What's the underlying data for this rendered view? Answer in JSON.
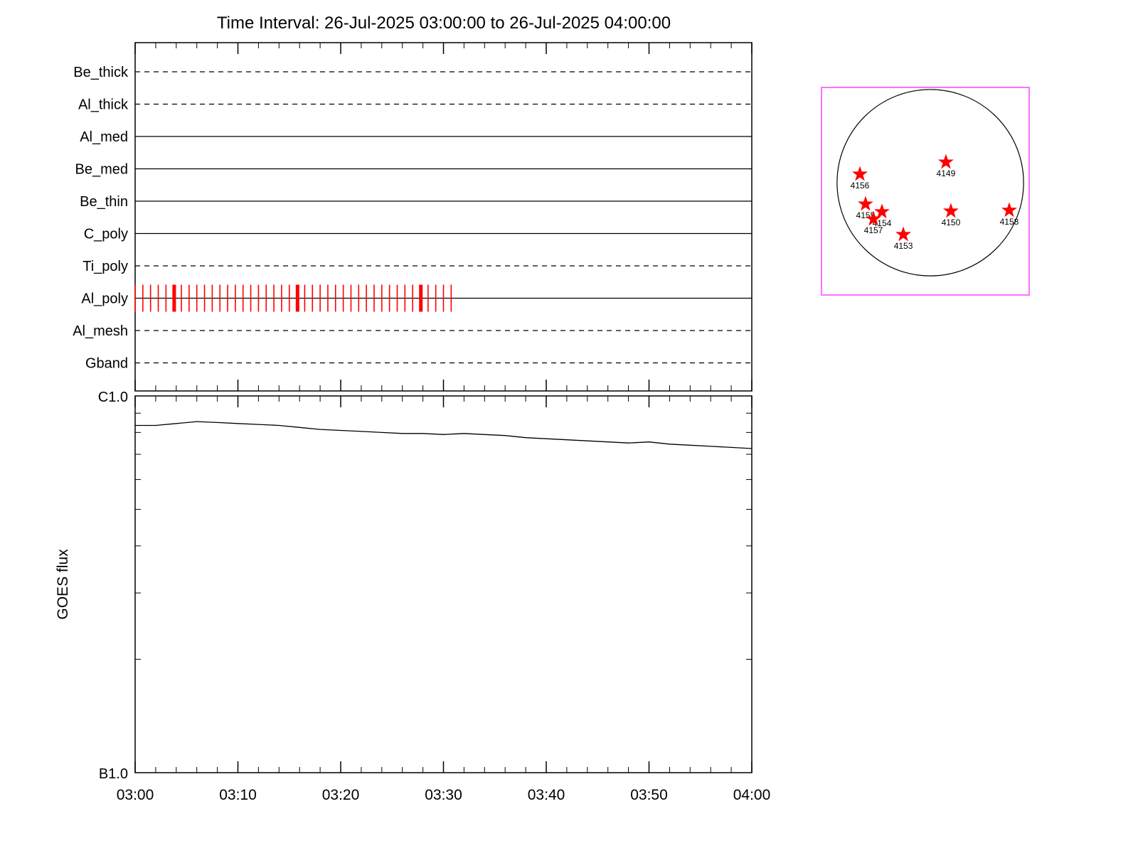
{
  "chart_data": [
    {
      "type": "timeline",
      "title": "Time Interval: 26-Jul-2025 03:00:00 to 26-Jul-2025 04:00:00",
      "x_range_minutes": [
        0,
        60
      ],
      "rows": [
        {
          "label": "Be_thick",
          "line_style": "dashed"
        },
        {
          "label": "Al_thick",
          "line_style": "dashed"
        },
        {
          "label": "Al_med",
          "line_style": "solid"
        },
        {
          "label": "Be_med",
          "line_style": "solid"
        },
        {
          "label": "Be_thin",
          "line_style": "solid"
        },
        {
          "label": "C_poly",
          "line_style": "solid"
        },
        {
          "label": "Ti_poly",
          "line_style": "dashed"
        },
        {
          "label": "Al_poly",
          "line_style": "solid"
        },
        {
          "label": "Al_mesh",
          "line_style": "dashed"
        },
        {
          "label": "Gband",
          "line_style": "dashed"
        }
      ],
      "exposures": {
        "row": "Al_poly",
        "color": "#ff0000",
        "tick_minutes": [
          0,
          0.75,
          1.5,
          2.25,
          3,
          3.75,
          4.5,
          5.25,
          6,
          6.75,
          7.5,
          8.25,
          9,
          9.75,
          10.5,
          11.25,
          12,
          12.75,
          13.5,
          14.25,
          15,
          15.75,
          16.5,
          17.25,
          18,
          18.75,
          19.5,
          20.25,
          21,
          21.75,
          22.5,
          23.25,
          24,
          24.75,
          25.5,
          26.25,
          27,
          27.75,
          28.5,
          29.25,
          30,
          30.75
        ],
        "major_tick_minutes": [
          3.8,
          15.8,
          27.8
        ]
      }
    },
    {
      "type": "line",
      "ylabel": "GOES flux",
      "y_scale": "log",
      "y_ticks": [
        {
          "label": "C1.0",
          "value": 1e-06
        },
        {
          "label": "B1.0",
          "value": 1e-07
        }
      ],
      "x_tick_labels": [
        "03:00",
        "03:10",
        "03:20",
        "03:30",
        "03:40",
        "03:50",
        "04:00"
      ],
      "x_minutes": [
        0,
        2,
        4,
        6,
        8,
        10,
        12,
        14,
        16,
        18,
        20,
        22,
        24,
        26,
        28,
        30,
        32,
        34,
        36,
        38,
        40,
        42,
        44,
        46,
        48,
        50,
        52,
        54,
        56,
        58,
        60
      ],
      "flux": [
        8.35e-07,
        8.35e-07,
        8.45e-07,
        8.55e-07,
        8.5e-07,
        8.45e-07,
        8.4e-07,
        8.35e-07,
        8.25e-07,
        8.15e-07,
        8.1e-07,
        8.05e-07,
        8e-07,
        7.95e-07,
        7.95e-07,
        7.9e-07,
        7.95e-07,
        7.9e-07,
        7.85e-07,
        7.75e-07,
        7.7e-07,
        7.65e-07,
        7.6e-07,
        7.55e-07,
        7.5e-07,
        7.55e-07,
        7.45e-07,
        7.4e-07,
        7.35e-07,
        7.3e-07,
        7.25e-07
      ]
    },
    {
      "type": "scatter",
      "name": "solar-disk-active-regions",
      "frame_color": "#ff70ff",
      "disk": {
        "cx": 0.524,
        "cy": 0.459,
        "r": 0.449
      },
      "marker": {
        "shape": "star",
        "color": "#ff0000"
      },
      "regions": [
        {
          "label": "4156",
          "x": 0.185,
          "y": 0.418
        },
        {
          "label": "4149",
          "x": 0.599,
          "y": 0.36
        },
        {
          "label": "4155",
          "x": 0.212,
          "y": 0.562
        },
        {
          "label": "4154",
          "x": 0.291,
          "y": 0.599
        },
        {
          "label": "4157",
          "x": 0.25,
          "y": 0.634
        },
        {
          "label": "4153",
          "x": 0.394,
          "y": 0.709
        },
        {
          "label": "4150",
          "x": 0.623,
          "y": 0.596
        },
        {
          "label": "4158",
          "x": 0.904,
          "y": 0.592
        }
      ]
    }
  ]
}
